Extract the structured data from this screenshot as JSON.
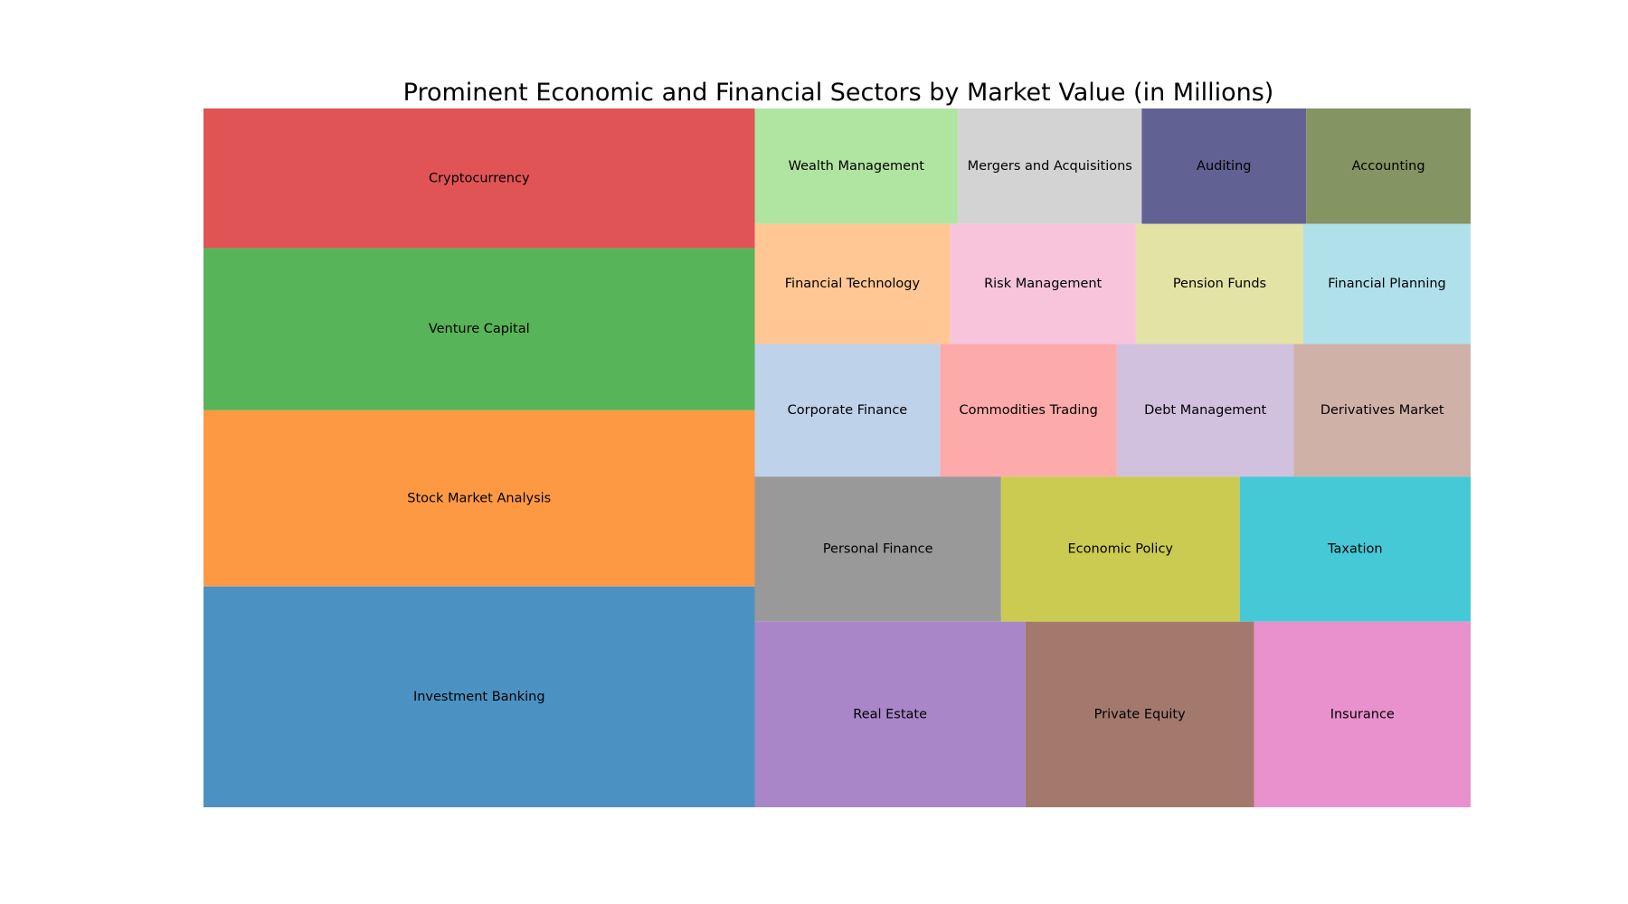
{
  "chart_data": {
    "type": "treemap",
    "title": "Prominent Economic and Financial Sectors by Market Value (in Millions)",
    "units": "Millions",
    "columns": [
      {
        "id": "col1",
        "rows": [
          {
            "cells": [
              {
                "label": "Cryptocurrency",
                "value": 6900,
                "color": "#e05455"
              }
            ]
          },
          {
            "cells": [
              {
                "label": "Venture Capital",
                "value": 8000,
                "color": "#58b458"
              }
            ]
          },
          {
            "cells": [
              {
                "label": "Stock Market Analysis",
                "value": 8700,
                "color": "#fe9943"
              }
            ]
          },
          {
            "cells": [
              {
                "label": "Investment Banking",
                "value": 10900,
                "color": "#4b92c3"
              }
            ]
          }
        ]
      },
      {
        "id": "col2",
        "rows": [
          {
            "cells": [
              {
                "label": "Wealth Management",
                "value": 2100,
                "color": "#afe5a0"
              },
              {
                "label": "Mergers and Acquisitions",
                "value": 1900,
                "color": "#d3d3d3"
              },
              {
                "label": "Auditing",
                "value": 1700,
                "color": "#626193"
              },
              {
                "label": "Accounting",
                "value": 1700,
                "color": "#849462"
              }
            ]
          },
          {
            "cells": [
              {
                "label": "Financial Technology",
                "value": 2100,
                "color": "#fec793"
              },
              {
                "label": "Risk Management",
                "value": 2000,
                "color": "#f7c4dc"
              },
              {
                "label": "Pension Funds",
                "value": 1800,
                "color": "#e3e3a5"
              },
              {
                "label": "Financial Planning",
                "value": 1800,
                "color": "#b0e1eb"
              }
            ]
          },
          {
            "cells": [
              {
                "label": "Corporate Finance",
                "value": 2200,
                "color": "#bed2ea"
              },
              {
                "label": "Commodities Trading",
                "value": 2100,
                "color": "#fdaaaa"
              },
              {
                "label": "Debt Management",
                "value": 2100,
                "color": "#d1c1de"
              },
              {
                "label": "Derivatives Market",
                "value": 2100,
                "color": "#cfb1a8"
              }
            ]
          },
          {
            "cells": [
              {
                "label": "Personal Finance",
                "value": 3200,
                "color": "#999999"
              },
              {
                "label": "Economic Policy",
                "value": 3100,
                "color": "#cbcb51"
              },
              {
                "label": "Taxation",
                "value": 3000,
                "color": "#46c9d6"
              }
            ]
          },
          {
            "cells": [
              {
                "label": "Real Estate",
                "value": 4500,
                "color": "#a886c8"
              },
              {
                "label": "Private Equity",
                "value": 3800,
                "color": "#a3796e"
              },
              {
                "label": "Insurance",
                "value": 3600,
                "color": "#e891cc"
              }
            ]
          }
        ]
      }
    ]
  }
}
